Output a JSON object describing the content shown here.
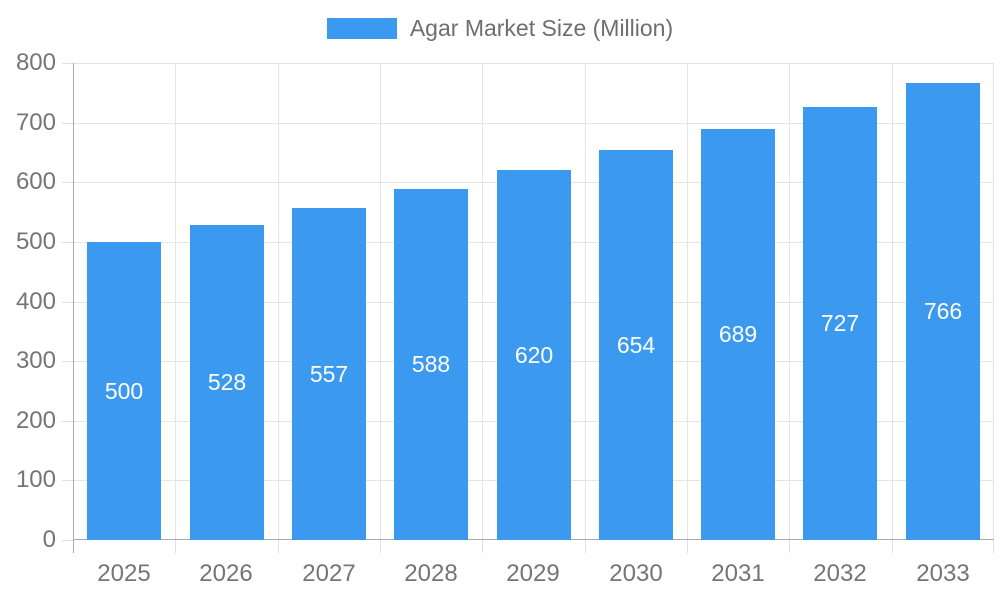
{
  "chart_data": {
    "type": "bar",
    "title": "",
    "legend": {
      "label": "Agar Market Size (Million)",
      "position": "top"
    },
    "categories": [
      "2025",
      "2026",
      "2027",
      "2028",
      "2029",
      "2030",
      "2031",
      "2032",
      "2033"
    ],
    "series": [
      {
        "name": "Agar Market Size (Million)",
        "values": [
          500,
          528,
          557,
          588,
          620,
          654,
          689,
          727,
          766
        ]
      }
    ],
    "value_labels_shown": true,
    "xlabel": "",
    "ylabel": "",
    "ylim": [
      0,
      800
    ],
    "yticks": [
      0,
      100,
      200,
      300,
      400,
      500,
      600,
      700,
      800
    ],
    "grid": true,
    "colors": {
      "bar": "#3B99F0",
      "value_label": "#FFFFFF",
      "grid": "#E5E5E5",
      "tick": "#E0E0E0",
      "axis": "#ABABAB",
      "tick_label": "#757575",
      "legend_text": "#6E6E6E"
    }
  }
}
